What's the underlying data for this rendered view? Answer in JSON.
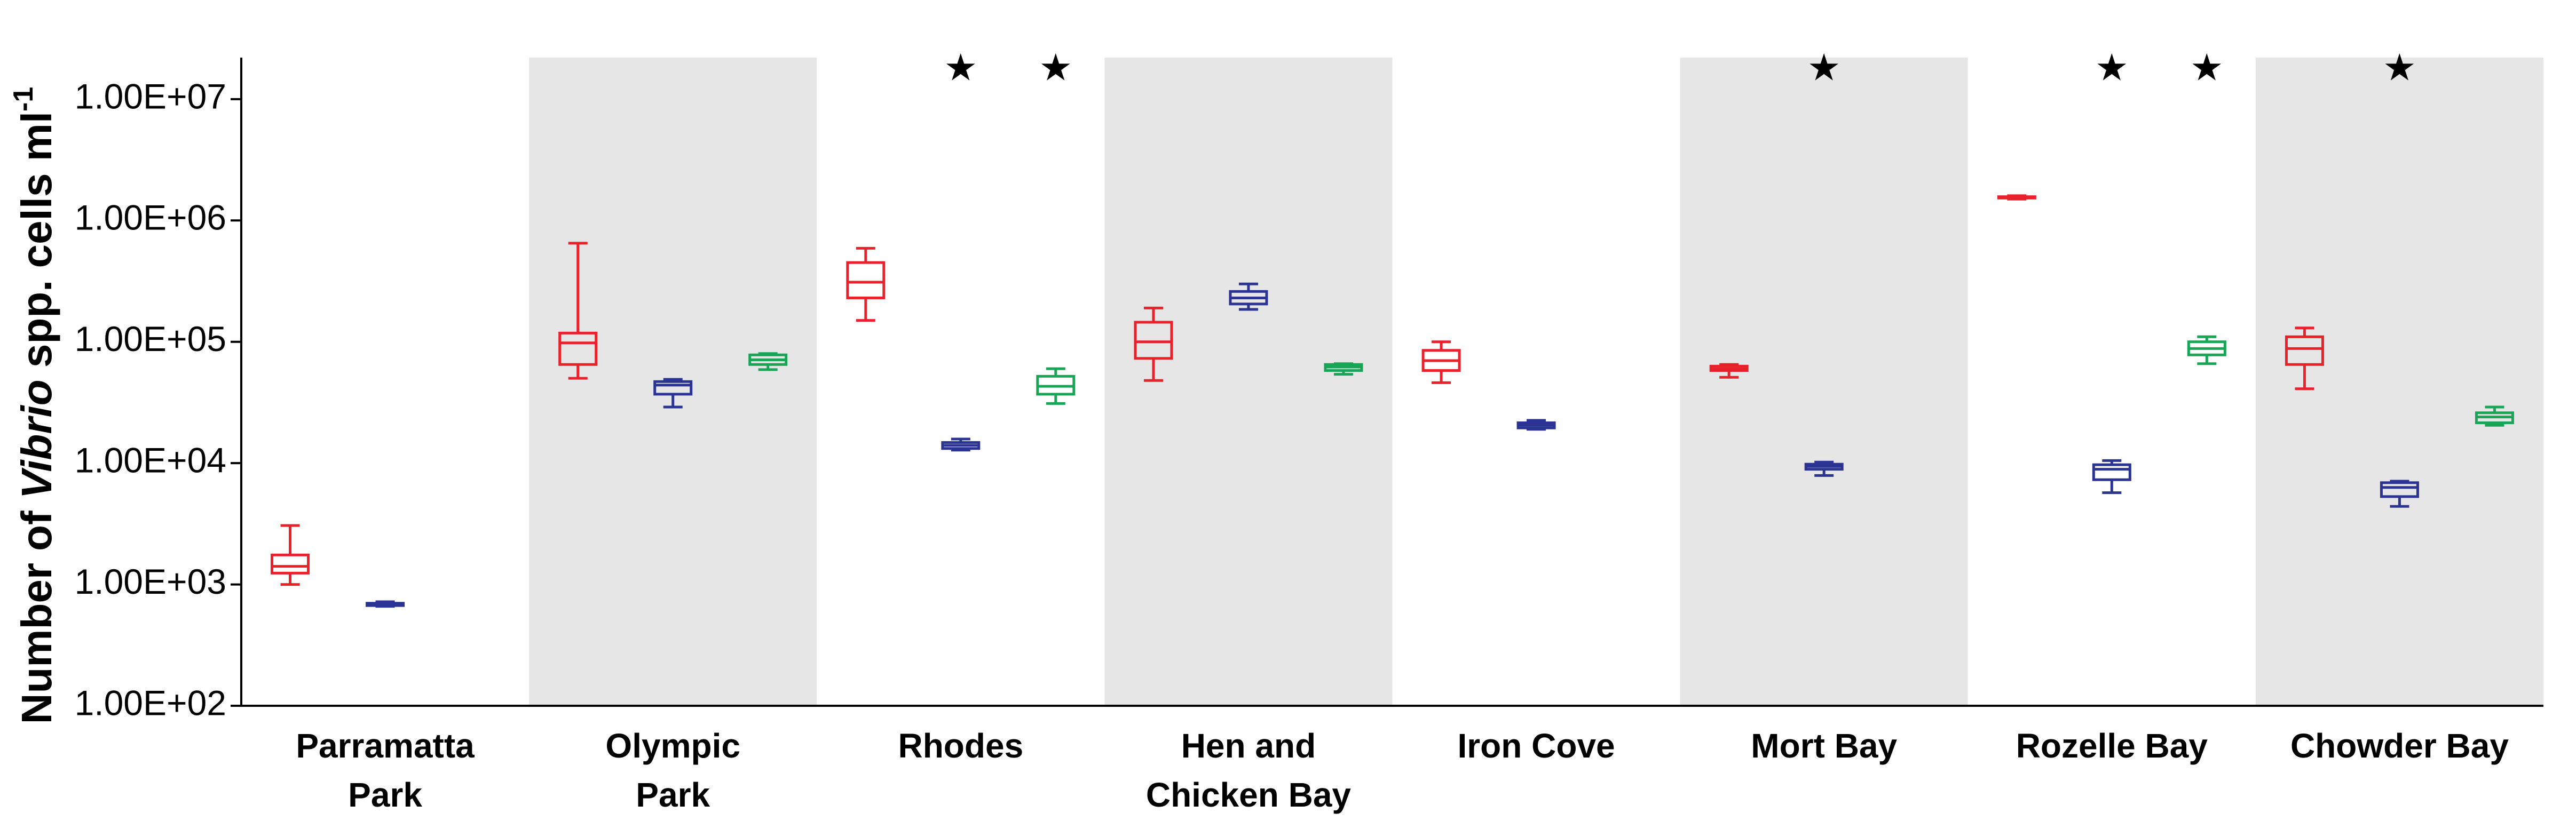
{
  "chart_data": {
    "type": "box",
    "y_label": [
      "Number of ",
      "Vibrio",
      " spp. cells ml",
      "-1"
    ],
    "categories": [
      [
        "Parramatta",
        "Park"
      ],
      [
        "Olympic",
        "Park"
      ],
      [
        "Rhodes"
      ],
      [
        "Hen and",
        "Chicken Bay"
      ],
      [
        "Iron Cove"
      ],
      [
        "Mort Bay"
      ],
      [
        "Rozelle Bay"
      ],
      [
        "Chowder Bay"
      ]
    ],
    "band_colors": [
      "#ffffff",
      "#e6e6e6",
      "#ffffff",
      "#e6e6e6",
      "#ffffff",
      "#e6e6e6",
      "#ffffff",
      "#e6e6e6"
    ],
    "log_scale": true,
    "ylim": [
      100,
      22000000
    ],
    "yticks": [
      {
        "value": 100,
        "label": "1.00E+02"
      },
      {
        "value": 1000,
        "label": "1.00E+03"
      },
      {
        "value": 10000,
        "label": "1.00E+04"
      },
      {
        "value": 100000,
        "label": "1.00E+05"
      },
      {
        "value": 1000000,
        "label": "1.00E+06"
      },
      {
        "value": 10000000,
        "label": "1.00E+07"
      }
    ],
    "series": [
      {
        "color": "#e8212b",
        "low": [
          1000,
          50000,
          150000,
          48000,
          46000,
          51000,
          1500000,
          41000
        ],
        "q1": [
          1240,
          65000,
          230000,
          73000,
          58000,
          58000,
          1530000,
          65000
        ],
        "median": [
          1410,
          98000,
          310000,
          100000,
          70000,
          60000,
          1550000,
          88000
        ],
        "q3": [
          1750,
          118000,
          450000,
          145000,
          85000,
          63000,
          1570000,
          110000
        ],
        "high": [
          3060,
          650000,
          590000,
          190000,
          100000,
          65000,
          1600000,
          130000
        ],
        "stars": [
          null,
          null,
          null,
          null,
          null,
          null,
          null,
          null
        ]
      },
      {
        "color": "#2b3393",
        "low": [
          660,
          29000,
          12800,
          185000,
          19000,
          7900,
          5700,
          4400
        ],
        "q1": [
          670,
          37000,
          13200,
          205000,
          19500,
          8900,
          7300,
          5300
        ],
        "median": [
          690,
          44000,
          14000,
          230000,
          20500,
          9400,
          8900,
          6300
        ],
        "q3": [
          700,
          47000,
          14800,
          260000,
          21500,
          9800,
          9700,
          6900
        ],
        "high": [
          720,
          49000,
          15800,
          300000,
          22500,
          10200,
          10500,
          7100
        ],
        "stars": [
          null,
          null,
          "★",
          null,
          null,
          "★",
          "★",
          "★"
        ]
      },
      {
        "color": "#19a556",
        "low": [
          null,
          59000,
          31000,
          54000,
          null,
          null,
          66000,
          20500
        ],
        "q1": [
          null,
          65000,
          37000,
          58000,
          null,
          null,
          78000,
          21500
        ],
        "median": [
          null,
          71000,
          43000,
          62000,
          null,
          null,
          88000,
          24000
        ],
        "q3": [
          null,
          78000,
          52000,
          65000,
          null,
          null,
          100000,
          26000
        ],
        "high": [
          null,
          80000,
          60000,
          66000,
          null,
          null,
          110000,
          29000
        ],
        "stars": [
          null,
          null,
          "★",
          null,
          null,
          null,
          "★",
          null
        ]
      }
    ]
  }
}
